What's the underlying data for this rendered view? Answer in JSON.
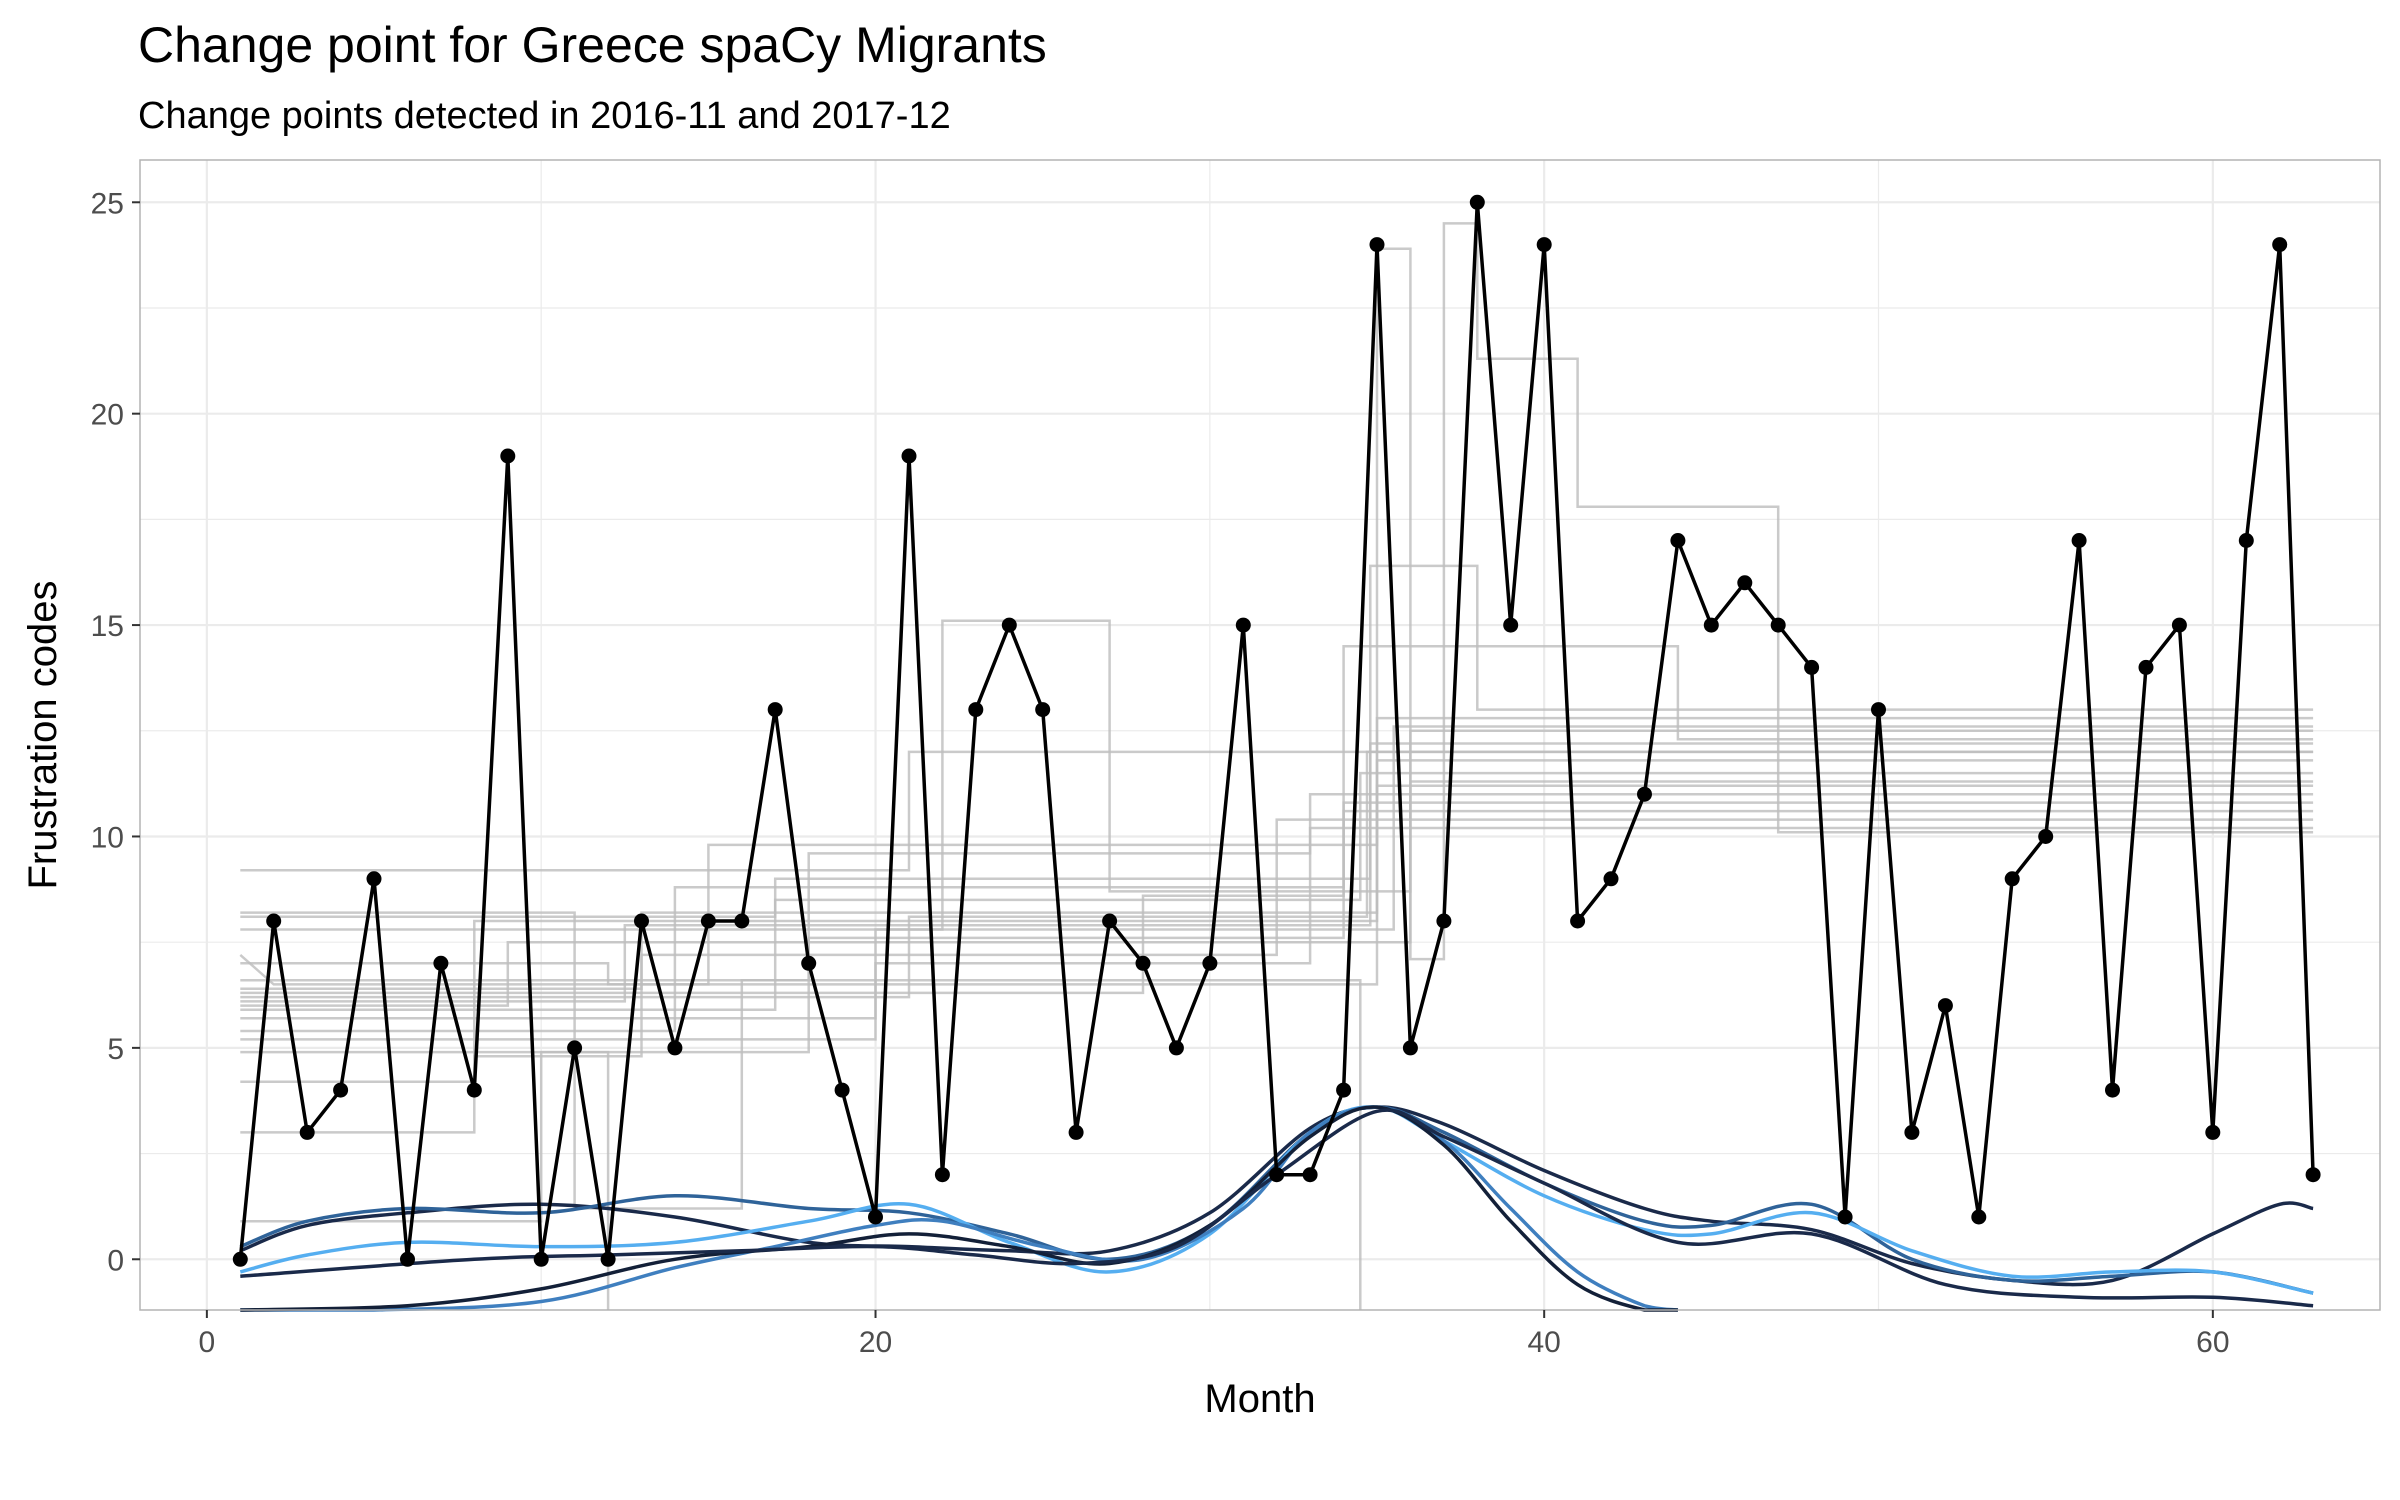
{
  "chart_data": {
    "type": "line",
    "title": "Change point for Greece spaCy Migrants",
    "subtitle": "Change points detected in 2016-11 and 2017-12",
    "xlabel": "Month",
    "ylabel": "Frustration codes",
    "xlim": [
      -2,
      65
    ],
    "ylim": [
      -1.2,
      26
    ],
    "xticks": [
      0,
      20,
      40,
      60
    ],
    "yticks": [
      0,
      5,
      10,
      15,
      20,
      25
    ],
    "grid": true,
    "legend": "none",
    "colors": {
      "observed": "#000000",
      "segments": "#bdbdbd",
      "smooth": [
        "#1a2a4a",
        "#2f6399",
        "#55aef0",
        "#3f7fbf",
        "#132038"
      ],
      "grid": "#ebebeb",
      "panel_border": "#b3b3b3"
    },
    "observed": {
      "x": [
        1,
        2,
        3,
        4,
        5,
        6,
        7,
        8,
        9,
        10,
        11,
        12,
        13,
        14,
        15,
        16,
        17,
        18,
        19,
        20,
        21,
        22,
        23,
        24,
        25,
        26,
        27,
        28,
        29,
        30,
        31,
        32,
        33,
        34,
        35,
        36,
        37,
        38,
        39,
        40,
        41,
        42,
        43,
        44,
        45,
        46,
        47,
        48,
        49,
        50,
        51,
        52,
        53,
        54,
        55,
        56,
        57,
        58,
        59,
        60,
        61,
        62,
        63
      ],
      "y": [
        0,
        8,
        3,
        4,
        9,
        0,
        7,
        4,
        19,
        0,
        5,
        0,
        8,
        5,
        8,
        8,
        13,
        7,
        4,
        1,
        19,
        2,
        13,
        15,
        13,
        3,
        8,
        7,
        5,
        7,
        15,
        2,
        2,
        4,
        24,
        5,
        8,
        25,
        15,
        24,
        8,
        9,
        11,
        17,
        15,
        16,
        15,
        14,
        1,
        13,
        3,
        6,
        1,
        9,
        10,
        17,
        4,
        14,
        15,
        3,
        17,
        24,
        2
      ]
    },
    "segment_lines": [
      [
        [
          1,
          6.1
        ],
        [
          12.5,
          6.1
        ],
        [
          12.5,
          7.9
        ],
        [
          34.8,
          7.9
        ],
        [
          34.8,
          12.2
        ],
        [
          63,
          12.2
        ]
      ],
      [
        [
          1,
          6.4
        ],
        [
          13,
          6.4
        ],
        [
          13,
          8.2
        ],
        [
          35,
          8.2
        ],
        [
          35,
          11.8
        ],
        [
          63,
          11.8
        ]
      ],
      [
        [
          1,
          5.9
        ],
        [
          17,
          5.9
        ],
        [
          17,
          8.5
        ],
        [
          34.5,
          8.5
        ],
        [
          34.5,
          11.5
        ],
        [
          63,
          11.5
        ]
      ],
      [
        [
          1,
          6.2
        ],
        [
          21,
          6.2
        ],
        [
          21,
          8.1
        ],
        [
          34.7,
          8.1
        ],
        [
          34.7,
          12.0
        ],
        [
          63,
          12.0
        ]
      ],
      [
        [
          1,
          6.0
        ],
        [
          9,
          6.0
        ],
        [
          9,
          7.5
        ],
        [
          36,
          7.5
        ],
        [
          36,
          12.5
        ],
        [
          63,
          12.5
        ]
      ],
      [
        [
          1,
          4.2
        ],
        [
          8,
          4.2
        ],
        [
          8,
          8.0
        ],
        [
          35,
          8.0
        ],
        [
          35,
          11.2
        ],
        [
          63,
          11.2
        ]
      ],
      [
        [
          1,
          7.2
        ],
        [
          2,
          6.5
        ],
        [
          15,
          6.5
        ],
        [
          15,
          9.8
        ],
        [
          35,
          9.8
        ],
        [
          35,
          12.8
        ],
        [
          63,
          12.8
        ]
      ],
      [
        [
          1,
          5.2
        ],
        [
          20,
          5.2
        ],
        [
          20,
          7.0
        ],
        [
          33,
          7.0
        ],
        [
          33,
          11.0
        ],
        [
          63,
          11.0
        ]
      ],
      [
        [
          1,
          3.0
        ],
        [
          8,
          3.0
        ],
        [
          8,
          4.8
        ],
        [
          13,
          4.8
        ],
        [
          13,
          7.2
        ],
        [
          32,
          7.2
        ],
        [
          32,
          10.4
        ],
        [
          63,
          10.4
        ]
      ],
      [
        [
          1,
          9.2
        ],
        [
          21,
          9.2
        ],
        [
          21,
          12.0
        ],
        [
          63,
          12.0
        ]
      ],
      [
        [
          1,
          4.9
        ],
        [
          18,
          4.9
        ],
        [
          18,
          7.6
        ],
        [
          34,
          7.6
        ],
        [
          34,
          10.8
        ],
        [
          63,
          10.8
        ]
      ],
      [
        [
          1,
          5.4
        ],
        [
          14,
          5.4
        ],
        [
          14,
          8.8
        ],
        [
          34,
          8.8
        ],
        [
          34,
          10.6
        ],
        [
          63,
          10.6
        ]
      ],
      [
        [
          1,
          6.6
        ],
        [
          18,
          6.6
        ],
        [
          18,
          9.6
        ],
        [
          33,
          9.6
        ],
        [
          33,
          10.2
        ],
        [
          63,
          10.2
        ]
      ],
      [
        [
          1,
          7.8
        ],
        [
          22,
          7.8
        ],
        [
          22,
          15.1
        ],
        [
          27,
          15.1
        ],
        [
          27,
          8.7
        ],
        [
          36,
          8.7
        ],
        [
          36,
          11.3
        ],
        [
          63,
          11.3
        ]
      ],
      [
        [
          1,
          8.2
        ],
        [
          11,
          8.2
        ],
        [
          11,
          1.2
        ],
        [
          16,
          1.2
        ],
        [
          16,
          6.6
        ],
        [
          34.5,
          6.6
        ],
        [
          34.5,
          -1.2
        ]
      ],
      [
        [
          1,
          0.9
        ],
        [
          10,
          0.9
        ],
        [
          10,
          4.9
        ],
        [
          12,
          4.9
        ],
        [
          12,
          -1.2
        ]
      ],
      [
        [
          1,
          7.0
        ],
        [
          12,
          7.0
        ],
        [
          12,
          6.5
        ],
        [
          35,
          6.5
        ],
        [
          35,
          23.9
        ],
        [
          36,
          23.9
        ],
        [
          36,
          7.1
        ],
        [
          37,
          7.1
        ],
        [
          37,
          24.5
        ],
        [
          38,
          24.5
        ],
        [
          38,
          21.3
        ],
        [
          41,
          21.3
        ],
        [
          41,
          17.8
        ],
        [
          47,
          17.8
        ],
        [
          47,
          10.1
        ],
        [
          63,
          10.1
        ]
      ],
      [
        [
          1,
          8.1
        ],
        [
          17,
          8.1
        ],
        [
          17,
          9.0
        ],
        [
          34.8,
          9.0
        ],
        [
          34.8,
          16.4
        ],
        [
          38,
          16.4
        ],
        [
          38,
          13.0
        ],
        [
          63,
          13.0
        ]
      ],
      [
        [
          1,
          6.3
        ],
        [
          28,
          6.3
        ],
        [
          28,
          8.6
        ],
        [
          34,
          8.6
        ],
        [
          34,
          14.5
        ],
        [
          44,
          14.5
        ],
        [
          44,
          12.3
        ],
        [
          63,
          12.3
        ]
      ],
      [
        [
          1,
          5.7
        ],
        [
          20,
          5.7
        ],
        [
          20,
          7.8
        ],
        [
          35.5,
          7.8
        ],
        [
          35.5,
          12.6
        ],
        [
          63,
          12.6
        ]
      ]
    ],
    "smooth_curves": [
      {
        "x": [
          1,
          3,
          6,
          10,
          14,
          18,
          21,
          24,
          27,
          30,
          33,
          35,
          37,
          40,
          43,
          45,
          48,
          51,
          54,
          57,
          60,
          62,
          63
        ],
        "y": [
          0.2,
          0.8,
          1.1,
          1.3,
          1.0,
          0.4,
          0.3,
          0.2,
          0.2,
          1.1,
          3.1,
          3.6,
          3.2,
          2.1,
          1.2,
          0.9,
          0.7,
          -0.1,
          -0.5,
          -0.5,
          0.6,
          1.3,
          1.2
        ]
      },
      {
        "x": [
          1,
          3,
          6,
          10,
          14,
          18,
          21,
          24,
          27,
          30,
          33,
          35,
          37,
          40,
          43,
          45,
          48,
          51,
          54,
          57,
          60,
          63
        ],
        "y": [
          0.3,
          0.9,
          1.2,
          1.1,
          1.5,
          1.2,
          1.1,
          0.6,
          0.0,
          0.8,
          3.0,
          3.6,
          3.0,
          1.8,
          0.9,
          0.8,
          1.3,
          0.0,
          -0.5,
          -0.4,
          -0.3,
          -0.8
        ]
      },
      {
        "x": [
          1,
          3,
          6,
          10,
          14,
          18,
          21,
          24,
          27,
          30,
          33,
          35,
          37,
          40,
          43,
          45,
          48,
          51,
          54,
          57,
          60,
          63
        ],
        "y": [
          -0.3,
          0.1,
          0.4,
          0.3,
          0.4,
          0.9,
          1.3,
          0.4,
          -0.3,
          0.6,
          3.0,
          3.6,
          2.8,
          1.5,
          0.7,
          0.6,
          1.1,
          0.2,
          -0.4,
          -0.3,
          -0.3,
          -0.8
        ]
      },
      {
        "x": [
          1,
          5,
          10,
          14,
          17,
          20,
          22,
          25,
          28,
          31,
          33,
          35,
          37,
          39,
          41,
          43,
          44
        ],
        "y": [
          -1.2,
          -1.2,
          -1.0,
          -0.2,
          0.3,
          0.8,
          0.9,
          0.3,
          0.0,
          1.2,
          3.0,
          3.6,
          2.8,
          1.2,
          -0.3,
          -1.1,
          -1.2
        ]
      },
      {
        "x": [
          1,
          6,
          10,
          14,
          18,
          21,
          24,
          27,
          30,
          33,
          35,
          37,
          39,
          41,
          43,
          44
        ],
        "y": [
          -1.2,
          -1.1,
          -0.7,
          0.0,
          0.3,
          0.6,
          0.3,
          -0.1,
          0.8,
          2.9,
          3.6,
          2.7,
          0.9,
          -0.6,
          -1.2,
          -1.2
        ]
      },
      {
        "x": [
          1,
          8,
          12,
          16,
          20,
          23,
          26,
          29,
          32,
          35,
          37,
          40,
          44,
          48,
          52,
          56,
          60,
          63
        ],
        "y": [
          -0.4,
          0.0,
          0.1,
          0.2,
          0.3,
          0.1,
          -0.1,
          0.3,
          2.0,
          3.5,
          2.9,
          1.8,
          0.4,
          0.6,
          -0.6,
          -0.9,
          -0.9,
          -1.1
        ]
      }
    ]
  }
}
